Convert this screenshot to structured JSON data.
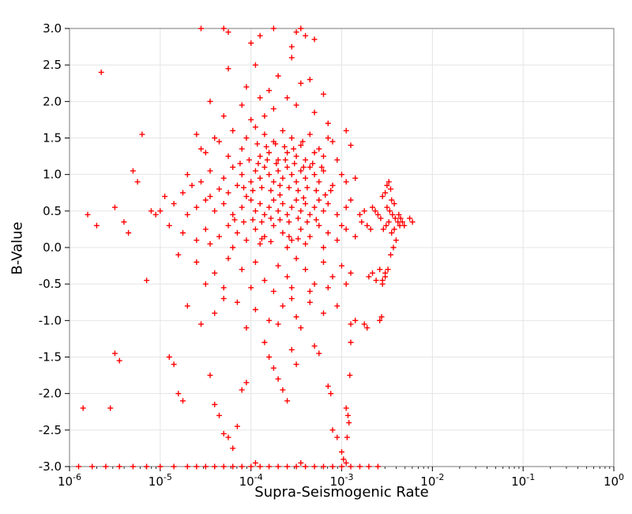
{
  "chart_data": {
    "type": "scatter",
    "title": "",
    "xlabel": "Supra-Seismogenic Rate",
    "ylabel": "B-Value",
    "x_scale": "log",
    "xlog_range": [
      -6,
      0
    ],
    "ylim": [
      -3,
      3
    ],
    "grid": true,
    "legend": "none",
    "x_tick_exponents": [
      -6,
      -5,
      -4,
      -3,
      -2,
      -1,
      0
    ],
    "y_tick_values": [
      3.0,
      2.5,
      2.0,
      1.5,
      1.0,
      0.5,
      0.0,
      -0.5,
      -1.0,
      -1.5,
      -2.0,
      -2.5,
      -3.0
    ],
    "y_tick_labels": [
      "3.0",
      "2.5",
      "2.0",
      "1.5",
      "1.0",
      "0.5",
      "0.0",
      "-0.5",
      "-1.0",
      "-1.5",
      "-2.0",
      "-2.5",
      "-3.0"
    ],
    "marker": {
      "shape": "plus",
      "size": 7
    },
    "colors": {
      "marker": "#ff0000",
      "grid": "#e4e4e4",
      "frame": "#7a7a7a",
      "text": "#000000"
    },
    "points": [
      [
        -4.25,
        2.45
      ],
      [
        -3.95,
        2.5
      ],
      [
        -3.7,
        2.35
      ],
      [
        -3.55,
        2.6
      ],
      [
        -3.35,
        2.3
      ],
      [
        -4.05,
        2.2
      ],
      [
        -3.8,
        2.15
      ],
      [
        -3.6,
        2.05
      ],
      [
        -3.45,
        2.25
      ],
      [
        -3.2,
        2.1
      ],
      [
        -4.45,
        2.0
      ],
      [
        -4.1,
        1.95
      ],
      [
        -3.9,
        2.05
      ],
      [
        -3.75,
        1.9
      ],
      [
        -3.5,
        1.95
      ],
      [
        -3.3,
        1.85
      ],
      [
        -3.15,
        1.7
      ],
      [
        -4.3,
        1.8
      ],
      [
        -4.0,
        1.75
      ],
      [
        -3.85,
        1.8
      ],
      [
        -4.6,
        1.55
      ],
      [
        -4.35,
        1.45
      ],
      [
        -4.2,
        1.6
      ],
      [
        -4.05,
        1.5
      ],
      [
        -3.95,
        1.65
      ],
      [
        -3.85,
        1.55
      ],
      [
        -3.75,
        1.45
      ],
      [
        -3.65,
        1.6
      ],
      [
        -3.55,
        1.5
      ],
      [
        -3.45,
        1.4
      ],
      [
        -3.35,
        1.55
      ],
      [
        -3.25,
        1.35
      ],
      [
        -3.1,
        1.45
      ],
      [
        -2.95,
        1.6
      ],
      [
        -4.5,
        1.3
      ],
      [
        -4.25,
        1.25
      ],
      [
        -4.1,
        1.35
      ],
      [
        -3.9,
        1.25
      ],
      [
        -3.8,
        1.3
      ],
      [
        -3.7,
        1.2
      ],
      [
        -3.6,
        1.3
      ],
      [
        -3.5,
        1.25
      ],
      [
        -3.4,
        1.2
      ],
      [
        -3.3,
        1.3
      ],
      [
        -3.2,
        1.25
      ],
      [
        -3.05,
        1.2
      ],
      [
        -4.4,
        1.5
      ],
      [
        -4.55,
        1.35
      ],
      [
        -3.15,
        1.5
      ],
      [
        -2.9,
        1.4
      ],
      [
        -4.7,
        1.0
      ],
      [
        -4.55,
        0.9
      ],
      [
        -4.45,
        1.05
      ],
      [
        -4.3,
        0.95
      ],
      [
        -4.2,
        1.1
      ],
      [
        -4.1,
        1.0
      ],
      [
        -4.0,
        0.9
      ],
      [
        -3.95,
        1.05
      ],
      [
        -3.9,
        0.95
      ],
      [
        -3.85,
        1.1
      ],
      [
        -3.8,
        1.0
      ],
      [
        -3.75,
        0.9
      ],
      [
        -3.7,
        1.05
      ],
      [
        -3.65,
        0.95
      ],
      [
        -3.6,
        1.1
      ],
      [
        -3.55,
        1.0
      ],
      [
        -3.5,
        0.9
      ],
      [
        -3.45,
        1.05
      ],
      [
        -3.4,
        0.95
      ],
      [
        -3.35,
        1.1
      ],
      [
        -3.3,
        1.0
      ],
      [
        -3.25,
        0.9
      ],
      [
        -3.2,
        1.05
      ],
      [
        -3.1,
        0.85
      ],
      [
        -3.0,
        1.0
      ],
      [
        -2.95,
        0.9
      ],
      [
        -2.85,
        0.95
      ],
      [
        -4.65,
        0.85
      ],
      [
        -4.35,
        0.8
      ],
      [
        -4.15,
        0.85
      ],
      [
        -5.0,
        0.5
      ],
      [
        -4.85,
        0.6
      ],
      [
        -4.7,
        0.45
      ],
      [
        -4.6,
        0.55
      ],
      [
        -4.5,
        0.65
      ],
      [
        -4.4,
        0.5
      ],
      [
        -4.3,
        0.6
      ],
      [
        -4.2,
        0.45
      ],
      [
        -4.1,
        0.55
      ],
      [
        -4.0,
        0.65
      ],
      [
        -3.95,
        0.5
      ],
      [
        -3.9,
        0.6
      ],
      [
        -3.85,
        0.45
      ],
      [
        -3.8,
        0.55
      ],
      [
        -3.75,
        0.65
      ],
      [
        -3.7,
        0.5
      ],
      [
        -3.65,
        0.6
      ],
      [
        -3.6,
        0.45
      ],
      [
        -3.55,
        0.55
      ],
      [
        -3.5,
        0.65
      ],
      [
        -3.45,
        0.5
      ],
      [
        -3.4,
        0.6
      ],
      [
        -3.35,
        0.45
      ],
      [
        -3.3,
        0.55
      ],
      [
        -3.25,
        0.65
      ],
      [
        -3.2,
        0.5
      ],
      [
        -3.15,
        0.6
      ],
      [
        -3.05,
        0.45
      ],
      [
        -2.95,
        0.55
      ],
      [
        -2.9,
        0.65
      ],
      [
        -4.95,
        0.7
      ],
      [
        -4.75,
        0.75
      ],
      [
        -4.45,
        0.7
      ],
      [
        -4.25,
        0.75
      ],
      [
        -4.05,
        0.7
      ],
      [
        -3.68,
        0.72
      ],
      [
        -3.42,
        0.68
      ],
      [
        -3.18,
        0.72
      ],
      [
        -2.8,
        0.45
      ],
      [
        -2.75,
        0.5
      ],
      [
        -4.9,
        0.3
      ],
      [
        -4.75,
        0.2
      ],
      [
        -4.6,
        0.1
      ],
      [
        -4.5,
        0.25
      ],
      [
        -4.35,
        0.15
      ],
      [
        -4.25,
        0.3
      ],
      [
        -4.15,
        0.2
      ],
      [
        -4.05,
        0.1
      ],
      [
        -3.95,
        0.25
      ],
      [
        -3.85,
        0.15
      ],
      [
        -3.75,
        0.3
      ],
      [
        -3.65,
        0.2
      ],
      [
        -3.55,
        0.1
      ],
      [
        -3.45,
        0.25
      ],
      [
        -3.35,
        0.15
      ],
      [
        -3.25,
        0.3
      ],
      [
        -3.15,
        0.2
      ],
      [
        -3.05,
        0.1
      ],
      [
        -2.95,
        0.25
      ],
      [
        -2.85,
        0.15
      ],
      [
        -4.45,
        0.05
      ],
      [
        -4.2,
        0.0
      ],
      [
        -3.9,
        0.05
      ],
      [
        -3.6,
        0.0
      ],
      [
        -3.4,
        0.05
      ],
      [
        -3.2,
        0.0
      ],
      [
        -3.0,
        0.3
      ],
      [
        -2.78,
        0.35
      ],
      [
        -2.72,
        0.3
      ],
      [
        -2.68,
        0.25
      ],
      [
        -4.8,
        -0.1
      ],
      [
        -4.6,
        -0.2
      ],
      [
        -4.4,
        -0.35
      ],
      [
        -4.25,
        -0.15
      ],
      [
        -4.1,
        -0.3
      ],
      [
        -3.95,
        -0.2
      ],
      [
        -3.85,
        -0.45
      ],
      [
        -3.7,
        -0.25
      ],
      [
        -3.6,
        -0.4
      ],
      [
        -3.5,
        -0.15
      ],
      [
        -3.4,
        -0.3
      ],
      [
        -3.3,
        -0.5
      ],
      [
        -3.2,
        -0.2
      ],
      [
        -3.1,
        -0.4
      ],
      [
        -3.0,
        -0.25
      ],
      [
        -2.9,
        -0.35
      ],
      [
        -4.5,
        -0.5
      ],
      [
        -4.3,
        -0.55
      ],
      [
        -4.0,
        -0.55
      ],
      [
        -3.75,
        -0.6
      ],
      [
        -3.55,
        -0.55
      ],
      [
        -3.35,
        -0.6
      ],
      [
        -3.15,
        -0.55
      ],
      [
        -2.95,
        -0.5
      ],
      [
        -2.7,
        -0.4
      ],
      [
        -2.66,
        -0.35
      ],
      [
        -2.62,
        -0.45
      ],
      [
        -2.58,
        -0.3
      ],
      [
        -2.55,
        -0.5
      ],
      [
        -2.52,
        -0.4
      ],
      [
        -4.7,
        -0.8
      ],
      [
        -4.4,
        -0.9
      ],
      [
        -4.15,
        -0.75
      ],
      [
        -3.95,
        -0.85
      ],
      [
        -3.8,
        -1.0
      ],
      [
        -3.65,
        -0.8
      ],
      [
        -3.5,
        -0.95
      ],
      [
        -3.35,
        -0.75
      ],
      [
        -3.2,
        -0.9
      ],
      [
        -3.05,
        -0.8
      ],
      [
        -2.9,
        -1.05
      ],
      [
        -2.85,
        -1.0
      ],
      [
        -4.55,
        -1.05
      ],
      [
        -4.05,
        -1.1
      ],
      [
        -3.7,
        -1.05
      ],
      [
        -3.45,
        -1.1
      ],
      [
        -3.55,
        -0.7
      ],
      [
        -4.3,
        -0.7
      ],
      [
        -5.5,
        -1.45
      ],
      [
        -5.45,
        -1.55
      ],
      [
        -4.9,
        -1.5
      ],
      [
        -4.85,
        -1.6
      ],
      [
        -4.8,
        -2.0
      ],
      [
        -4.75,
        -2.1
      ],
      [
        -4.4,
        -2.15
      ],
      [
        -4.35,
        -2.3
      ],
      [
        -4.3,
        -2.55
      ],
      [
        -4.25,
        -2.6
      ],
      [
        -4.2,
        -2.75
      ],
      [
        -4.15,
        -2.45
      ],
      [
        -4.1,
        -1.95
      ],
      [
        -4.05,
        -1.85
      ],
      [
        -3.85,
        -1.3
      ],
      [
        -3.8,
        -1.5
      ],
      [
        -3.75,
        -1.65
      ],
      [
        -3.7,
        -1.8
      ],
      [
        -3.65,
        -1.95
      ],
      [
        -3.6,
        -2.1
      ],
      [
        -3.55,
        -1.4
      ],
      [
        -3.5,
        -1.6
      ],
      [
        -3.1,
        -2.5
      ],
      [
        -3.05,
        -2.6
      ],
      [
        -3.0,
        -2.8
      ],
      [
        -2.98,
        -2.9
      ],
      [
        -3.15,
        -1.9
      ],
      [
        -3.12,
        -2.0
      ],
      [
        -2.75,
        -1.05
      ],
      [
        -2.72,
        -1.1
      ],
      [
        -5.55,
        -2.2
      ],
      [
        -4.45,
        -1.75
      ],
      [
        -3.3,
        -1.35
      ],
      [
        -3.25,
        -1.45
      ],
      [
        -5.9,
        -3.0
      ],
      [
        -5.75,
        -3.0
      ],
      [
        -5.6,
        -3.0
      ],
      [
        -5.45,
        -3.0
      ],
      [
        -5.3,
        -3.0
      ],
      [
        -5.15,
        -3.0
      ],
      [
        -5.0,
        -3.0
      ],
      [
        -4.85,
        -3.0
      ],
      [
        -4.7,
        -3.0
      ],
      [
        -4.6,
        -3.0
      ],
      [
        -4.5,
        -3.0
      ],
      [
        -4.4,
        -3.0
      ],
      [
        -4.3,
        -3.0
      ],
      [
        -4.2,
        -3.0
      ],
      [
        -4.1,
        -3.0
      ],
      [
        -4.0,
        -3.0
      ],
      [
        -3.9,
        -3.0
      ],
      [
        -3.8,
        -3.0
      ],
      [
        -3.7,
        -3.0
      ],
      [
        -3.6,
        -3.0
      ],
      [
        -3.5,
        -3.0
      ],
      [
        -3.4,
        -3.0
      ],
      [
        -3.3,
        -3.0
      ],
      [
        -3.2,
        -3.0
      ],
      [
        -3.1,
        -3.0
      ],
      [
        -3.0,
        -3.0
      ],
      [
        -2.9,
        -3.0
      ],
      [
        -2.8,
        -3.0
      ],
      [
        -2.7,
        -3.0
      ],
      [
        -2.6,
        -3.0
      ],
      [
        -3.95,
        -2.95
      ],
      [
        -3.45,
        -2.95
      ],
      [
        -2.95,
        -2.95
      ],
      [
        -4.55,
        3.0
      ],
      [
        -4.3,
        3.0
      ],
      [
        -4.25,
        2.95
      ],
      [
        -3.75,
        3.0
      ],
      [
        -3.5,
        2.95
      ],
      [
        -3.45,
        3.0
      ],
      [
        -3.4,
        2.9
      ],
      [
        -4.0,
        2.8
      ],
      [
        -3.55,
        2.75
      ],
      [
        -3.3,
        2.85
      ],
      [
        -3.9,
        2.9
      ],
      [
        -5.85,
        -2.2
      ],
      [
        -5.8,
        0.45
      ],
      [
        -5.7,
        0.3
      ],
      [
        -5.65,
        2.4
      ],
      [
        -5.5,
        0.55
      ],
      [
        -5.4,
        0.35
      ],
      [
        -5.35,
        0.2
      ],
      [
        -5.3,
        1.05
      ],
      [
        -5.25,
        0.9
      ],
      [
        -5.2,
        1.55
      ],
      [
        -5.15,
        -0.45
      ],
      [
        -5.1,
        0.5
      ],
      [
        -5.05,
        0.45
      ],
      [
        -2.5,
        0.85
      ],
      [
        -2.48,
        0.9
      ],
      [
        -2.46,
        0.8
      ],
      [
        -2.52,
        0.75
      ],
      [
        -2.55,
        0.7
      ],
      [
        -2.45,
        0.65
      ],
      [
        -2.42,
        0.6
      ],
      [
        -2.5,
        0.55
      ],
      [
        -2.47,
        0.5
      ],
      [
        -2.44,
        0.45
      ],
      [
        -2.41,
        0.4
      ],
      [
        -2.38,
        0.35
      ],
      [
        -2.36,
        0.3
      ],
      [
        -2.42,
        0.25
      ],
      [
        -2.45,
        0.2
      ],
      [
        -2.48,
        0.35
      ],
      [
        -2.51,
        0.3
      ],
      [
        -2.54,
        0.25
      ],
      [
        -2.57,
        0.4
      ],
      [
        -2.6,
        0.45
      ],
      [
        -2.63,
        0.5
      ],
      [
        -2.66,
        0.55
      ],
      [
        -2.43,
        0.0
      ],
      [
        -2.46,
        -0.1
      ],
      [
        -2.49,
        -0.3
      ],
      [
        -2.52,
        -0.35
      ],
      [
        -2.55,
        -0.45
      ],
      [
        -2.4,
        0.1
      ],
      [
        -2.37,
        0.45
      ],
      [
        -2.35,
        0.4
      ],
      [
        -2.33,
        0.35
      ],
      [
        -2.31,
        0.3
      ],
      [
        -2.56,
        -0.95
      ],
      [
        -2.58,
        -1.0
      ],
      [
        -2.93,
        -2.3
      ],
      [
        -2.94,
        -2.6
      ],
      [
        -2.92,
        -2.4
      ],
      [
        -2.95,
        -2.2
      ],
      [
        -2.9,
        -1.3
      ],
      [
        -2.91,
        -1.75
      ],
      [
        -2.25,
        0.4
      ],
      [
        -2.22,
        0.35
      ],
      [
        -4.12,
        1.15
      ],
      [
        -4.02,
        1.2
      ],
      [
        -3.92,
        1.15
      ],
      [
        -3.82,
        1.2
      ],
      [
        -3.72,
        1.15
      ],
      [
        -3.62,
        1.2
      ],
      [
        -3.52,
        1.15
      ],
      [
        -3.42,
        1.1
      ],
      [
        -3.32,
        1.15
      ],
      [
        -3.22,
        1.1
      ],
      [
        -4.08,
        0.82
      ],
      [
        -3.98,
        0.78
      ],
      [
        -3.88,
        0.82
      ],
      [
        -3.78,
        0.78
      ],
      [
        -3.68,
        0.85
      ],
      [
        -3.58,
        0.82
      ],
      [
        -3.48,
        0.78
      ],
      [
        -3.38,
        0.82
      ],
      [
        -3.28,
        0.78
      ],
      [
        -3.12,
        0.78
      ],
      [
        -4.18,
        0.38
      ],
      [
        -4.08,
        0.35
      ],
      [
        -3.98,
        0.38
      ],
      [
        -3.88,
        0.35
      ],
      [
        -3.78,
        0.4
      ],
      [
        -3.68,
        0.38
      ],
      [
        -3.58,
        0.35
      ],
      [
        -3.48,
        0.4
      ],
      [
        -3.38,
        0.35
      ],
      [
        -3.28,
        0.38
      ],
      [
        -3.93,
        1.42
      ],
      [
        -3.83,
        1.38
      ],
      [
        -3.73,
        1.42
      ],
      [
        -3.63,
        1.38
      ],
      [
        -3.53,
        1.35
      ],
      [
        -3.43,
        1.45
      ],
      [
        -3.88,
        0.12
      ],
      [
        -3.78,
        0.08
      ],
      [
        -3.58,
        0.15
      ],
      [
        -3.48,
        0.12
      ]
    ]
  }
}
